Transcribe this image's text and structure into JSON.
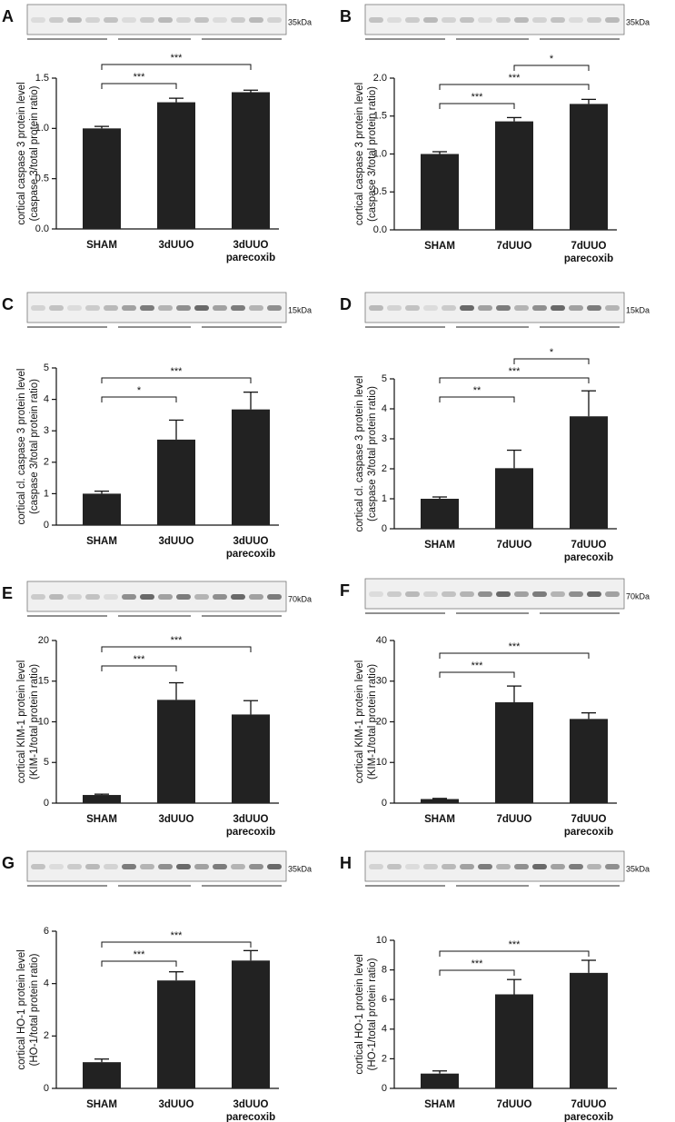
{
  "chart_data": [
    {
      "type": "bar",
      "panel": "A",
      "blot_label": "35kDa",
      "ylabel": [
        "cortical caspase 3 protein level",
        "(caspase 3/total protein ratio)"
      ],
      "categories": [
        "SHAM",
        "3dUUO",
        "3dUUO parecoxib"
      ],
      "values": [
        1.0,
        1.26,
        1.36
      ],
      "errors": [
        0.02,
        0.04,
        0.02
      ],
      "color": "#222222",
      "ylim": [
        0,
        1.5
      ],
      "yticks": [
        {
          "value": 0,
          "label": "0.0"
        },
        0.5,
        {
          "value": 1,
          "label": "1.0"
        },
        1.5
      ],
      "significance": [
        {
          "from": 0,
          "to": 1,
          "label": "***"
        },
        {
          "from": 0,
          "to": 2,
          "label": "***"
        }
      ]
    },
    {
      "type": "bar",
      "panel": "B",
      "blot_label": "35kDa",
      "ylabel": [
        "cortical caspase 3 protein level",
        "(caspase 3/total protein ratio)"
      ],
      "categories": [
        "SHAM",
        "7dUUO",
        "7dUUO parecoxib"
      ],
      "values": [
        1.0,
        1.43,
        1.66
      ],
      "errors": [
        0.03,
        0.05,
        0.06
      ],
      "color": "#222222",
      "ylim": [
        0,
        2
      ],
      "yticks": [
        {
          "value": 0,
          "label": "0.0"
        },
        0.5,
        {
          "value": 1,
          "label": "1.0"
        },
        1.5,
        {
          "value": 2,
          "label": "2.0"
        }
      ],
      "significance": [
        {
          "from": 0,
          "to": 1,
          "label": "***"
        },
        {
          "from": 0,
          "to": 2,
          "label": "***"
        },
        {
          "from": 1,
          "to": 2,
          "label": "*"
        }
      ]
    },
    {
      "type": "bar",
      "panel": "C",
      "blot_label": "15kDa",
      "ylabel": [
        "cortical cl. caspase 3 protein level",
        "(caspase 3/total protein ratio)"
      ],
      "categories": [
        "SHAM",
        "3dUUO",
        "3dUUO parecoxib"
      ],
      "values": [
        1.0,
        2.72,
        3.68
      ],
      "errors": [
        0.08,
        0.62,
        0.55
      ],
      "color": "#222222",
      "ylim": [
        0,
        5
      ],
      "yticks": [
        0,
        1,
        2,
        3,
        4,
        5
      ],
      "significance": [
        {
          "from": 0,
          "to": 1,
          "label": "*"
        },
        {
          "from": 0,
          "to": 2,
          "label": "***"
        }
      ]
    },
    {
      "type": "bar",
      "panel": "D",
      "blot_label": "15kDa",
      "ylabel": [
        "cortical cl. caspase 3 protein level",
        "(caspase 3/total protein ratio)"
      ],
      "categories": [
        "SHAM",
        "7dUUO",
        "7dUUO parecoxib"
      ],
      "values": [
        1.0,
        2.02,
        3.75
      ],
      "errors": [
        0.06,
        0.6,
        0.85
      ],
      "color": "#222222",
      "ylim": [
        0,
        5
      ],
      "yticks": [
        0,
        1,
        2,
        3,
        4,
        5
      ],
      "significance": [
        {
          "from": 0,
          "to": 1,
          "label": "**"
        },
        {
          "from": 0,
          "to": 2,
          "label": "***"
        },
        {
          "from": 1,
          "to": 2,
          "label": "*"
        }
      ]
    },
    {
      "type": "bar",
      "panel": "E",
      "blot_label": "70kDa",
      "ylabel": [
        "cortical KIM-1 protein level",
        "(KIM-1/total protein ratio)"
      ],
      "categories": [
        "SHAM",
        "3dUUO",
        "3dUUO parecoxib"
      ],
      "values": [
        1.0,
        12.7,
        10.9
      ],
      "errors": [
        0.1,
        2.1,
        1.7
      ],
      "color": "#222222",
      "ylim": [
        0,
        20
      ],
      "yticks": [
        0,
        5,
        10,
        15,
        20
      ],
      "significance": [
        {
          "from": 0,
          "to": 1,
          "label": "***"
        },
        {
          "from": 0,
          "to": 2,
          "label": "***"
        }
      ]
    },
    {
      "type": "bar",
      "panel": "F",
      "blot_label": "70kDa",
      "ylabel": [
        "cortical KIM-1 protein level",
        "(KIM-1/total protein ratio)"
      ],
      "categories": [
        "SHAM",
        "7dUUO",
        "7dUUO parecoxib"
      ],
      "values": [
        1.0,
        24.8,
        20.7
      ],
      "errors": [
        0.15,
        4.0,
        1.5
      ],
      "color": "#222222",
      "ylim": [
        0,
        40
      ],
      "yticks": [
        0,
        10,
        20,
        30,
        40
      ],
      "significance": [
        {
          "from": 0,
          "to": 1,
          "label": "***"
        },
        {
          "from": 0,
          "to": 2,
          "label": "***"
        }
      ]
    },
    {
      "type": "bar",
      "panel": "G",
      "blot_label": "35kDa",
      "ylabel": [
        "cortical HO-1 protein level",
        "(HO-1/total protein ratio)"
      ],
      "categories": [
        "SHAM",
        "3dUUO",
        "3dUUO parecoxib"
      ],
      "values": [
        1.0,
        4.12,
        4.88
      ],
      "errors": [
        0.12,
        0.33,
        0.38
      ],
      "color": "#222222",
      "ylim": [
        0,
        6
      ],
      "yticks": [
        0,
        2,
        4,
        6
      ],
      "significance": [
        {
          "from": 0,
          "to": 1,
          "label": "***"
        },
        {
          "from": 0,
          "to": 2,
          "label": "***"
        }
      ]
    },
    {
      "type": "bar",
      "panel": "H",
      "blot_label": "35kDa",
      "ylabel": [
        "cortical HO-1 protein level",
        "(HO-1/total protein ratio)"
      ],
      "categories": [
        "SHAM",
        "7dUUO",
        "7dUUO parecoxib"
      ],
      "values": [
        1.0,
        6.35,
        7.8
      ],
      "errors": [
        0.18,
        1.0,
        0.85
      ],
      "color": "#222222",
      "ylim": [
        0,
        10
      ],
      "yticks": [
        0,
        2,
        4,
        6,
        8,
        10
      ],
      "significance": [
        {
          "from": 0,
          "to": 1,
          "label": "***"
        },
        {
          "from": 0,
          "to": 2,
          "label": "***"
        }
      ]
    }
  ]
}
